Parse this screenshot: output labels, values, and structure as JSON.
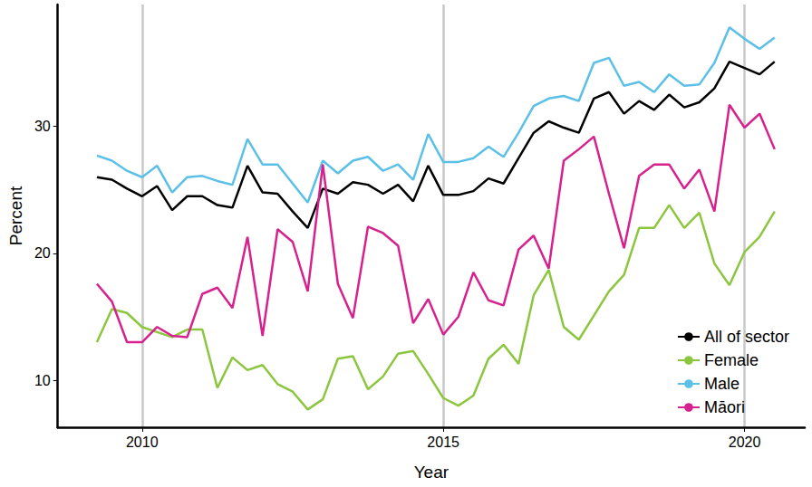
{
  "chart_data": {
    "type": "line",
    "x_label": "Year",
    "y_label": "Percent",
    "x": [
      2009.25,
      2009.5,
      2009.75,
      2010.0,
      2010.25,
      2010.5,
      2010.75,
      2011.0,
      2011.25,
      2011.5,
      2011.75,
      2012.0,
      2012.25,
      2012.5,
      2012.75,
      2013.0,
      2013.25,
      2013.5,
      2013.75,
      2014.0,
      2014.25,
      2014.5,
      2014.75,
      2015.0,
      2015.25,
      2015.5,
      2015.75,
      2016.0,
      2016.25,
      2016.5,
      2016.75,
      2017.0,
      2017.25,
      2017.5,
      2017.75,
      2018.0,
      2018.25,
      2018.5,
      2018.75,
      2019.0,
      2019.25,
      2019.5,
      2019.75,
      2020.0,
      2020.25,
      2020.5
    ],
    "series": [
      {
        "name": "All of sector",
        "color": "#000000",
        "values": [
          26.0,
          25.8,
          25.1,
          24.5,
          25.3,
          23.4,
          24.5,
          24.5,
          23.8,
          23.6,
          26.9,
          24.8,
          24.7,
          23.3,
          22.0,
          25.1,
          24.7,
          25.6,
          25.4,
          24.7,
          25.4,
          24.1,
          26.9,
          24.6,
          24.6,
          24.9,
          25.9,
          25.5,
          27.5,
          29.5,
          30.4,
          29.9,
          29.5,
          32.2,
          32.7,
          31.0,
          32.0,
          31.3,
          32.5,
          31.5,
          31.9,
          33.0,
          35.1,
          34.6,
          34.1,
          35.1
        ]
      },
      {
        "name": "Female",
        "color": "#8cc63f",
        "values": [
          13.0,
          15.6,
          15.3,
          14.2,
          13.8,
          13.4,
          14.0,
          14.0,
          9.4,
          11.8,
          10.8,
          11.2,
          9.7,
          9.1,
          7.7,
          8.5,
          11.7,
          11.9,
          9.3,
          10.3,
          12.1,
          12.3,
          10.5,
          8.6,
          8.0,
          8.8,
          11.7,
          12.8,
          11.3,
          16.7,
          18.7,
          14.2,
          13.2,
          15.1,
          17.0,
          18.3,
          22.0,
          22.0,
          23.8,
          22.0,
          23.2,
          19.2,
          17.5,
          20.1,
          21.3,
          23.3
        ]
      },
      {
        "name": "Male",
        "color": "#5bc0e8",
        "values": [
          27.7,
          27.3,
          26.5,
          26.0,
          26.9,
          24.8,
          26.0,
          26.1,
          25.7,
          25.4,
          29.0,
          27.0,
          27.0,
          25.5,
          24.0,
          27.3,
          26.3,
          27.3,
          27.6,
          26.5,
          27.0,
          25.8,
          29.4,
          27.2,
          27.2,
          27.5,
          28.4,
          27.6,
          29.5,
          31.6,
          32.2,
          32.4,
          32.0,
          35.0,
          35.4,
          33.2,
          33.5,
          32.7,
          34.1,
          33.2,
          33.3,
          35.0,
          37.8,
          36.9,
          36.1,
          37.0
        ]
      },
      {
        "name": "Māori",
        "color": "#d6218e",
        "values": [
          17.6,
          16.2,
          13.0,
          13.0,
          14.2,
          13.5,
          13.4,
          16.8,
          17.3,
          15.7,
          21.3,
          13.5,
          21.9,
          20.9,
          17.0,
          27.0,
          17.6,
          14.9,
          22.1,
          21.6,
          20.6,
          14.5,
          16.4,
          13.6,
          15.0,
          18.5,
          16.3,
          15.9,
          20.3,
          21.4,
          18.8,
          27.3,
          28.2,
          29.2,
          24.7,
          20.4,
          26.1,
          27.0,
          27.0,
          25.1,
          26.6,
          23.3,
          31.7,
          29.9,
          31.0,
          28.2
        ]
      }
    ],
    "xlim": [
      2008.6,
      2021.0
    ],
    "xticks": [
      2010,
      2015,
      2020
    ],
    "ylim": [
      6.3,
      39.6
    ],
    "yticks": [
      10,
      20,
      30
    ],
    "grid": "x",
    "legend": "lower right"
  }
}
